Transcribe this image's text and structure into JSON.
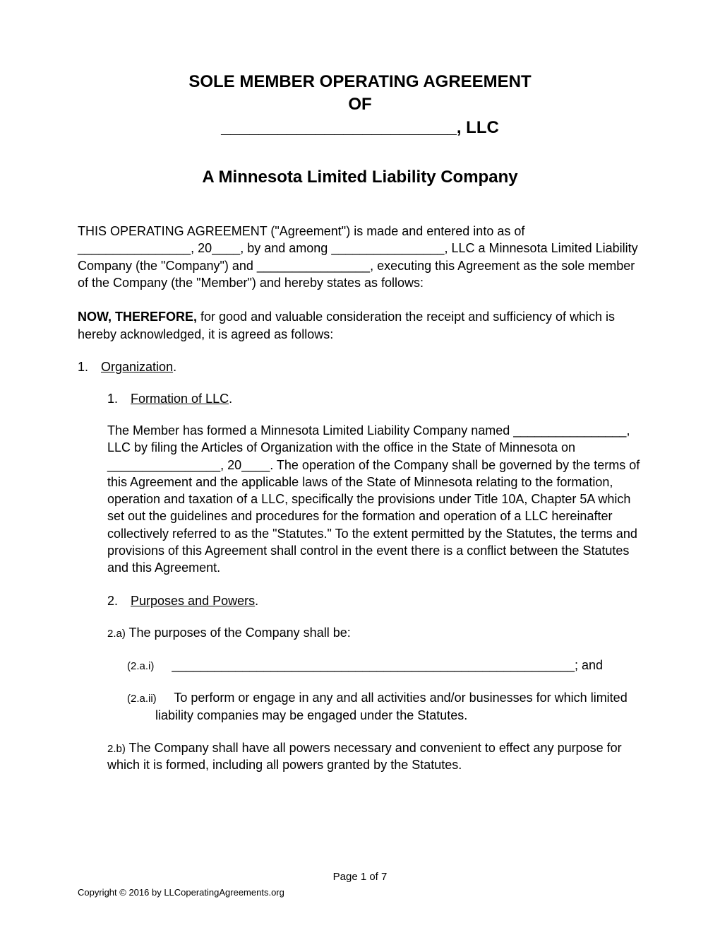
{
  "title": {
    "line1": "SOLE MEMBER OPERATING AGREEMENT",
    "line2": "OF",
    "line3": "_________________________, LLC"
  },
  "subtitle": "A Minnesota Limited Liability Company",
  "intro_paragraph": "THIS OPERATING AGREEMENT (\"Agreement\") is made and entered into as of ________________, 20____, by and among ________________, LLC a Minnesota Limited Liability Company (the \"Company\") and ________________, executing this Agreement as the sole member of the Company (the \"Member\") and hereby states as follows:",
  "now_therefore_bold": "NOW, THEREFORE,",
  "now_therefore_rest": " for good and valuable consideration the receipt and sufficiency of which is hereby acknowledged, it is agreed as follows:",
  "section1": {
    "num": "1.",
    "label": "Organization",
    "sub1": {
      "num": "1.",
      "label": "Formation of LLC",
      "body": "The Member has formed a Minnesota Limited Liability Company named ________________, LLC by filing the Articles of Organization with the office in the State of Minnesota on ________________, 20____. The operation of the Company shall be governed by the terms of this Agreement and the applicable laws of the State of Minnesota relating to the formation, operation and taxation of a LLC, specifically the provisions under Title 10A, Chapter 5A which set out the guidelines and procedures for the formation and operation of a LLC hereinafter collectively referred to as the \"Statutes.\" To the extent permitted by the Statutes, the terms and provisions of this Agreement shall control in the event there is a conflict between the Statutes and this Agreement."
    },
    "sub2": {
      "num": "2.",
      "label": "Purposes and Powers",
      "item_a": {
        "num": "2.a)",
        "text": "The purposes of the Company shall be:",
        "sub_i": {
          "num": "(2.a.i)",
          "text": "_________________________________________________________; and"
        },
        "sub_ii": {
          "num": "(2.a.ii)",
          "text": "To perform or engage in any and all activities and/or businesses for which limited liability companies may be engaged under the Statutes."
        }
      },
      "item_b": {
        "num": "2.b)",
        "text": "The Company shall have all powers necessary and convenient to effect any purpose for which it is formed, including all powers granted by the Statutes."
      }
    }
  },
  "footer": {
    "page": "Page 1 of 7",
    "copyright": "Copyright © 2016 by LLCoperatingAgreements.org"
  },
  "colors": {
    "text": "#000000",
    "background": "#ffffff"
  },
  "fonts": {
    "body_size": 18,
    "title_size": 24,
    "small_label_size": 15,
    "footer_size": 13
  }
}
